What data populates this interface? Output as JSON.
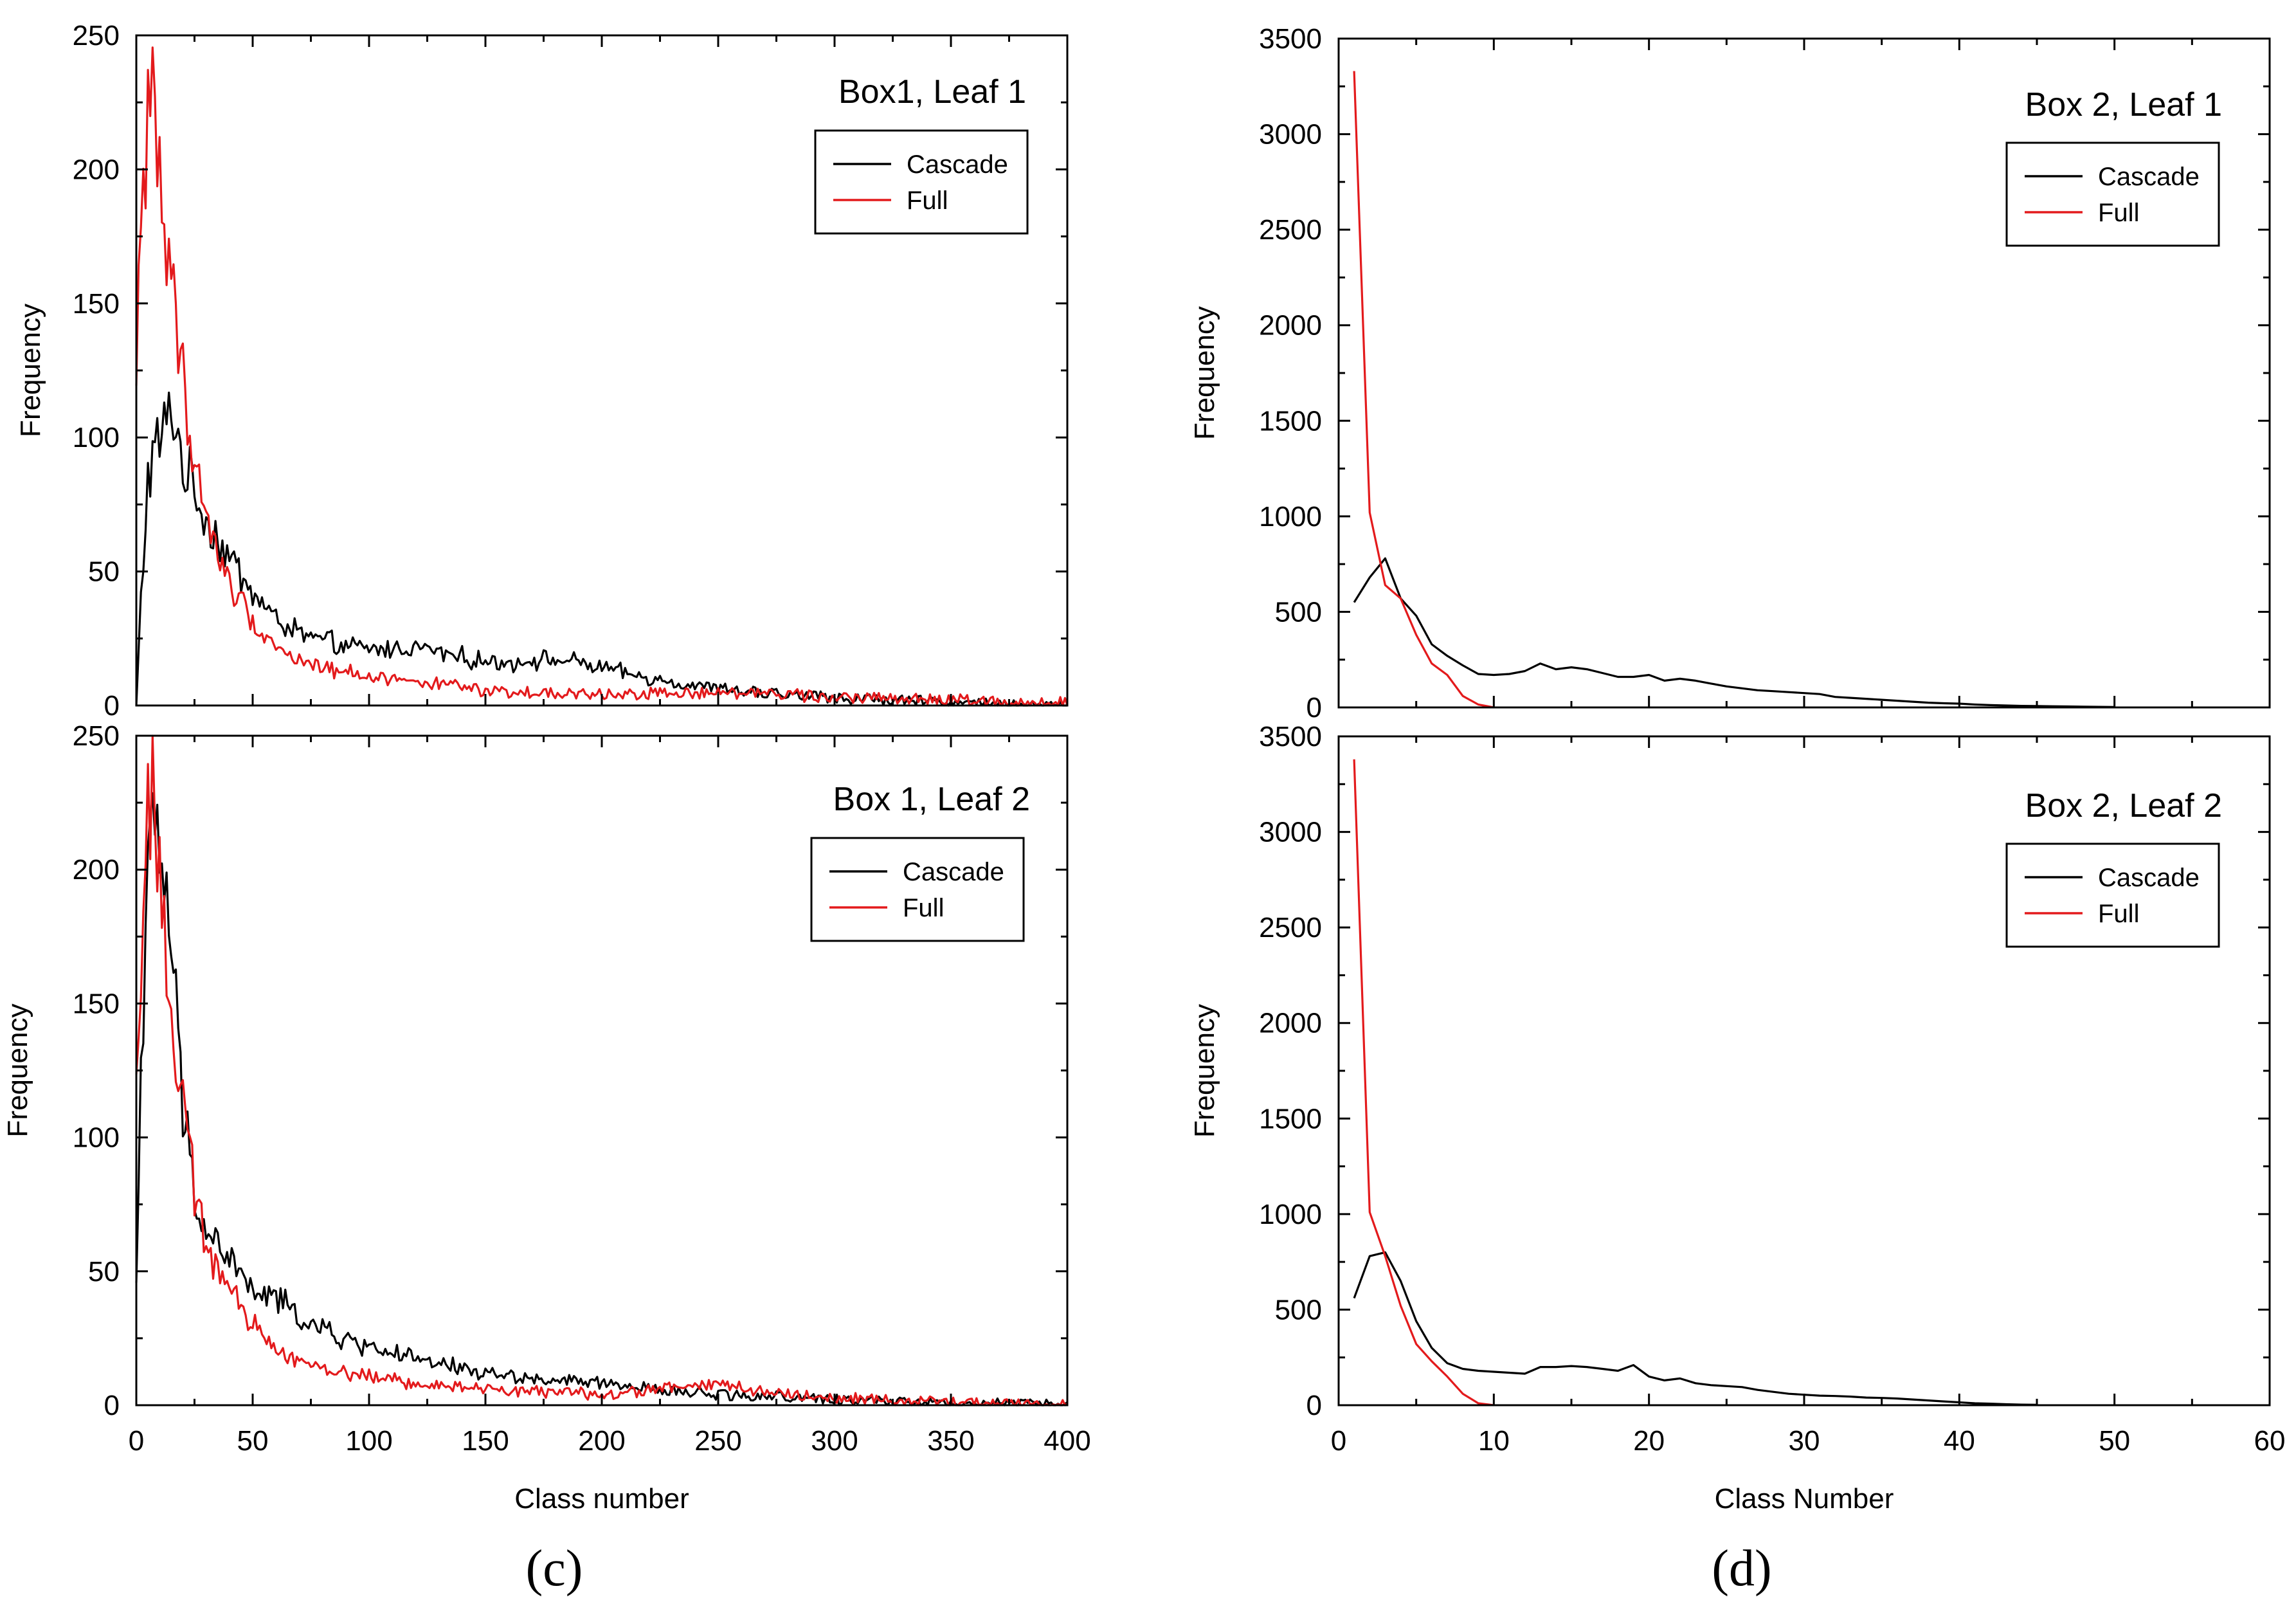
{
  "colors": {
    "cascade": "#000000",
    "full": "#e31a1c"
  },
  "captions": {
    "left": "(c)",
    "right": "(d)"
  },
  "chart_data": [
    {
      "type": "line",
      "title": "Box1, Leaf 1",
      "xlabel": "",
      "ylabel": "Frequency",
      "xlim": [
        0,
        400
      ],
      "ylim": [
        0,
        250
      ],
      "yticks": [
        0,
        50,
        100,
        150,
        200,
        250
      ],
      "xticks": [],
      "legend": [
        "Cascade",
        "Full"
      ],
      "legend_loc": "top-right",
      "series": [
        {
          "name": "Cascade",
          "noise": 0.13,
          "points": [
            [
              0,
              0
            ],
            [
              2,
              40
            ],
            [
              5,
              85
            ],
            [
              8,
              95
            ],
            [
              12,
              103
            ],
            [
              16,
              110
            ],
            [
              20,
              90
            ],
            [
              25,
              80
            ],
            [
              30,
              70
            ],
            [
              40,
              55
            ],
            [
              50,
              42
            ],
            [
              60,
              32
            ],
            [
              70,
              27
            ],
            [
              80,
              24
            ],
            [
              90,
              22
            ],
            [
              100,
              21
            ],
            [
              110,
              21
            ],
            [
              120,
              22
            ],
            [
              130,
              20
            ],
            [
              140,
              18
            ],
            [
              150,
              16
            ],
            [
              160,
              16
            ],
            [
              170,
              17
            ],
            [
              180,
              17
            ],
            [
              190,
              16
            ],
            [
              200,
              14
            ],
            [
              220,
              10
            ],
            [
              250,
              6
            ],
            [
              280,
              4
            ],
            [
              300,
              3
            ],
            [
              350,
              1
            ],
            [
              400,
              0
            ]
          ]
        },
        {
          "name": "Full",
          "noise": 0.12,
          "points": [
            [
              0,
              115
            ],
            [
              2,
              180
            ],
            [
              5,
              225
            ],
            [
              8,
              230
            ],
            [
              10,
              200
            ],
            [
              14,
              160
            ],
            [
              20,
              125
            ],
            [
              25,
              90
            ],
            [
              30,
              70
            ],
            [
              40,
              45
            ],
            [
              50,
              32
            ],
            [
              60,
              22
            ],
            [
              70,
              17
            ],
            [
              80,
              14
            ],
            [
              100,
              11
            ],
            [
              120,
              9
            ],
            [
              140,
              7
            ],
            [
              150,
              5
            ],
            [
              200,
              4
            ],
            [
              250,
              5
            ],
            [
              280,
              4
            ],
            [
              300,
              3
            ],
            [
              350,
              2
            ],
            [
              400,
              1
            ]
          ]
        }
      ]
    },
    {
      "type": "line",
      "title": "Box 1, Leaf 2",
      "xlabel": "Class number",
      "ylabel": "Frequency",
      "xlim": [
        0,
        400
      ],
      "ylim": [
        0,
        250
      ],
      "yticks": [
        0,
        50,
        100,
        150,
        200,
        250
      ],
      "xticks": [
        0,
        50,
        100,
        150,
        200,
        250,
        300,
        350,
        400
      ],
      "legend": [
        "Cascade",
        "Full"
      ],
      "legend_loc": "top-right",
      "series": [
        {
          "name": "Cascade",
          "noise": 0.12,
          "points": [
            [
              0,
              45
            ],
            [
              2,
              130
            ],
            [
              5,
              200
            ],
            [
              8,
              210
            ],
            [
              12,
              200
            ],
            [
              16,
              160
            ],
            [
              20,
              110
            ],
            [
              25,
              80
            ],
            [
              30,
              65
            ],
            [
              40,
              55
            ],
            [
              50,
              42
            ],
            [
              60,
              40
            ],
            [
              70,
              33
            ],
            [
              80,
              28
            ],
            [
              90,
              24
            ],
            [
              100,
              22
            ],
            [
              110,
              20
            ],
            [
              120,
              17
            ],
            [
              130,
              15
            ],
            [
              140,
              14
            ],
            [
              150,
              12
            ],
            [
              170,
              10
            ],
            [
              200,
              8
            ],
            [
              220,
              6
            ],
            [
              250,
              4
            ],
            [
              280,
              3
            ],
            [
              300,
              2
            ],
            [
              350,
              1
            ],
            [
              400,
              0
            ]
          ]
        },
        {
          "name": "Full",
          "noise": 0.12,
          "points": [
            [
              0,
              115
            ],
            [
              2,
              170
            ],
            [
              5,
              225
            ],
            [
              8,
              230
            ],
            [
              10,
              200
            ],
            [
              14,
              150
            ],
            [
              20,
              110
            ],
            [
              25,
              80
            ],
            [
              30,
              60
            ],
            [
              40,
              42
            ],
            [
              50,
              30
            ],
            [
              60,
              22
            ],
            [
              70,
              17
            ],
            [
              80,
              14
            ],
            [
              100,
              11
            ],
            [
              120,
              8
            ],
            [
              150,
              6
            ],
            [
              200,
              4
            ],
            [
              250,
              8
            ],
            [
              280,
              4
            ],
            [
              300,
              3
            ],
            [
              350,
              1
            ],
            [
              400,
              0
            ]
          ]
        }
      ]
    },
    {
      "type": "line",
      "title": "Box 2, Leaf 1",
      "xlabel": "",
      "ylabel": "Frequency",
      "xlim": [
        0,
        60
      ],
      "ylim": [
        0,
        3500
      ],
      "yticks": [
        0,
        500,
        1000,
        1500,
        2000,
        2500,
        3000,
        3500
      ],
      "xticks": [],
      "legend": [
        "Cascade",
        "Full"
      ],
      "legend_loc": "top-right",
      "series": [
        {
          "name": "Cascade",
          "noise": 0,
          "points": [
            [
              1,
              550
            ],
            [
              2,
              680
            ],
            [
              3,
              780
            ],
            [
              4,
              570
            ],
            [
              5,
              480
            ],
            [
              6,
              330
            ],
            [
              7,
              270
            ],
            [
              8,
              220
            ],
            [
              9,
              175
            ],
            [
              10,
              170
            ],
            [
              11,
              175
            ],
            [
              12,
              190
            ],
            [
              13,
              230
            ],
            [
              14,
              200
            ],
            [
              15,
              210
            ],
            [
              16,
              200
            ],
            [
              17,
              180
            ],
            [
              18,
              160
            ],
            [
              19,
              160
            ],
            [
              20,
              170
            ],
            [
              21,
              140
            ],
            [
              22,
              150
            ],
            [
              23,
              140
            ],
            [
              24,
              125
            ],
            [
              25,
              110
            ],
            [
              26,
              100
            ],
            [
              27,
              90
            ],
            [
              28,
              85
            ],
            [
              29,
              80
            ],
            [
              30,
              75
            ],
            [
              31,
              70
            ],
            [
              32,
              55
            ],
            [
              33,
              50
            ],
            [
              34,
              45
            ],
            [
              35,
              40
            ],
            [
              36,
              35
            ],
            [
              37,
              30
            ],
            [
              38,
              25
            ],
            [
              39,
              22
            ],
            [
              40,
              20
            ],
            [
              41,
              15
            ],
            [
              42,
              12
            ],
            [
              43,
              10
            ],
            [
              44,
              8
            ],
            [
              45,
              7
            ],
            [
              46,
              6
            ],
            [
              47,
              5
            ],
            [
              48,
              4
            ],
            [
              49,
              3
            ],
            [
              50,
              2
            ]
          ]
        },
        {
          "name": "Full",
          "noise": 0,
          "points": [
            [
              1,
              3330
            ],
            [
              2,
              1020
            ],
            [
              3,
              640
            ],
            [
              4,
              570
            ],
            [
              5,
              380
            ],
            [
              6,
              230
            ],
            [
              7,
              170
            ],
            [
              8,
              60
            ],
            [
              9,
              15
            ],
            [
              10,
              0
            ]
          ]
        }
      ]
    },
    {
      "type": "line",
      "title": "Box 2, Leaf 2",
      "xlabel": "Class Number",
      "ylabel": "Frequency",
      "xlim": [
        0,
        60
      ],
      "ylim": [
        0,
        3500
      ],
      "yticks": [
        0,
        500,
        1000,
        1500,
        2000,
        2500,
        3000,
        3500
      ],
      "xticks": [
        0,
        10,
        20,
        30,
        40,
        50,
        60
      ],
      "legend": [
        "Cascade",
        "Full"
      ],
      "legend_loc": "top-right",
      "series": [
        {
          "name": "Cascade",
          "noise": 0,
          "points": [
            [
              1,
              560
            ],
            [
              2,
              780
            ],
            [
              3,
              800
            ],
            [
              4,
              650
            ],
            [
              5,
              440
            ],
            [
              6,
              300
            ],
            [
              7,
              220
            ],
            [
              8,
              190
            ],
            [
              9,
              180
            ],
            [
              10,
              175
            ],
            [
              11,
              170
            ],
            [
              12,
              165
            ],
            [
              13,
              200
            ],
            [
              14,
              200
            ],
            [
              15,
              205
            ],
            [
              16,
              200
            ],
            [
              17,
              190
            ],
            [
              18,
              180
            ],
            [
              19,
              210
            ],
            [
              20,
              150
            ],
            [
              21,
              130
            ],
            [
              22,
              140
            ],
            [
              23,
              115
            ],
            [
              24,
              105
            ],
            [
              25,
              100
            ],
            [
              26,
              95
            ],
            [
              27,
              80
            ],
            [
              28,
              70
            ],
            [
              29,
              60
            ],
            [
              30,
              55
            ],
            [
              31,
              50
            ],
            [
              32,
              48
            ],
            [
              33,
              45
            ],
            [
              34,
              40
            ],
            [
              35,
              38
            ],
            [
              36,
              35
            ],
            [
              37,
              30
            ],
            [
              38,
              25
            ],
            [
              39,
              20
            ],
            [
              40,
              15
            ],
            [
              41,
              10
            ],
            [
              42,
              8
            ],
            [
              43,
              5
            ],
            [
              44,
              3
            ],
            [
              45,
              2
            ]
          ]
        },
        {
          "name": "Full",
          "noise": 0,
          "points": [
            [
              1,
              3380
            ],
            [
              2,
              1010
            ],
            [
              3,
              780
            ],
            [
              4,
              520
            ],
            [
              5,
              320
            ],
            [
              6,
              230
            ],
            [
              7,
              150
            ],
            [
              8,
              60
            ],
            [
              9,
              10
            ],
            [
              10,
              0
            ]
          ]
        }
      ]
    }
  ]
}
